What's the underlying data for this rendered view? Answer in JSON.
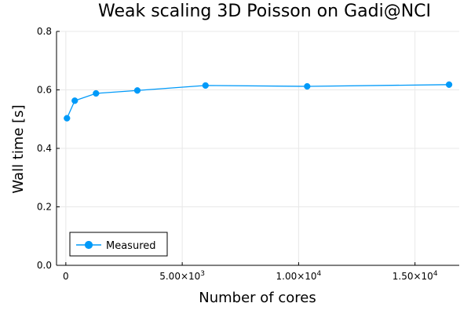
{
  "chart_data": {
    "type": "line",
    "title": "Weak scaling 3D Poisson on Gadi@NCI",
    "xlabel": "Number of cores",
    "ylabel": "Wall time [s]",
    "xlim": [
      -400,
      16900
    ],
    "ylim": [
      0,
      0.8
    ],
    "x_ticks": [
      {
        "value": 0,
        "label": "0"
      },
      {
        "value": 5000,
        "mantissa": "5.00×10",
        "exponent": "3"
      },
      {
        "value": 10000,
        "mantissa": "1.00×10",
        "exponent": "4"
      },
      {
        "value": 15000,
        "mantissa": "1.50×10",
        "exponent": "4"
      }
    ],
    "y_ticks": [
      {
        "value": 0.0,
        "label": "0.0"
      },
      {
        "value": 0.2,
        "label": "0.2"
      },
      {
        "value": 0.4,
        "label": "0.4"
      },
      {
        "value": 0.6,
        "label": "0.6"
      },
      {
        "value": 0.8,
        "label": "0.8"
      }
    ],
    "grid": true,
    "legend_position": "bottom-left",
    "series": [
      {
        "name": "Measured",
        "color": "#009af9",
        "marker": "circle",
        "x": [
          48,
          384,
          1296,
          3072,
          6000,
          10368,
          16464
        ],
        "y": [
          0.503,
          0.563,
          0.588,
          0.598,
          0.615,
          0.612,
          0.618
        ]
      }
    ]
  }
}
